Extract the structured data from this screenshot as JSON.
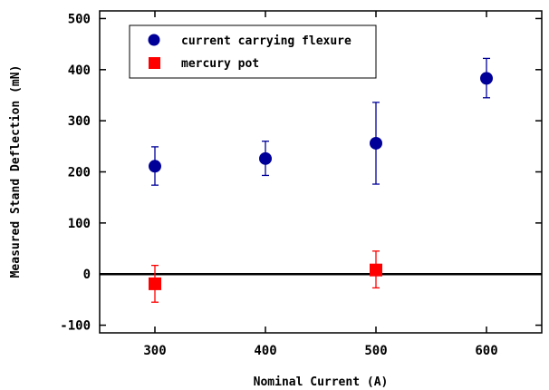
{
  "chart_data": {
    "type": "scatter",
    "title": "",
    "xlabel": "Nominal Current (A)",
    "ylabel": "Measured Stand Deflection (mN)",
    "xlim": [
      250,
      650
    ],
    "ylim": [
      -115,
      515
    ],
    "xticks": [
      300,
      400,
      500,
      600
    ],
    "yticks": [
      -100,
      0,
      100,
      200,
      300,
      400,
      500
    ],
    "xtick_labels": [
      "300",
      "400",
      "500",
      "600"
    ],
    "ytick_labels": [
      "-100",
      "0",
      "100",
      "200",
      "300",
      "400",
      "500"
    ],
    "grid": false,
    "zero_line": true,
    "legend_position": "top-left",
    "series": [
      {
        "name": "current carrying flexure",
        "marker": "circle",
        "color": "#000099",
        "points": [
          {
            "x": 300,
            "y": 211,
            "err_low": 174,
            "err_high": 249
          },
          {
            "x": 400,
            "y": 226,
            "err_low": 193,
            "err_high": 260
          },
          {
            "x": 500,
            "y": 256,
            "err_low": 176,
            "err_high": 336
          },
          {
            "x": 600,
            "y": 383,
            "err_low": 345,
            "err_high": 422
          }
        ]
      },
      {
        "name": "mercury pot",
        "marker": "square",
        "color": "#ff0000",
        "points": [
          {
            "x": 300,
            "y": -19,
            "err_low": -55,
            "err_high": 17
          },
          {
            "x": 500,
            "y": 8,
            "err_low": -27,
            "err_high": 45
          }
        ]
      }
    ]
  }
}
